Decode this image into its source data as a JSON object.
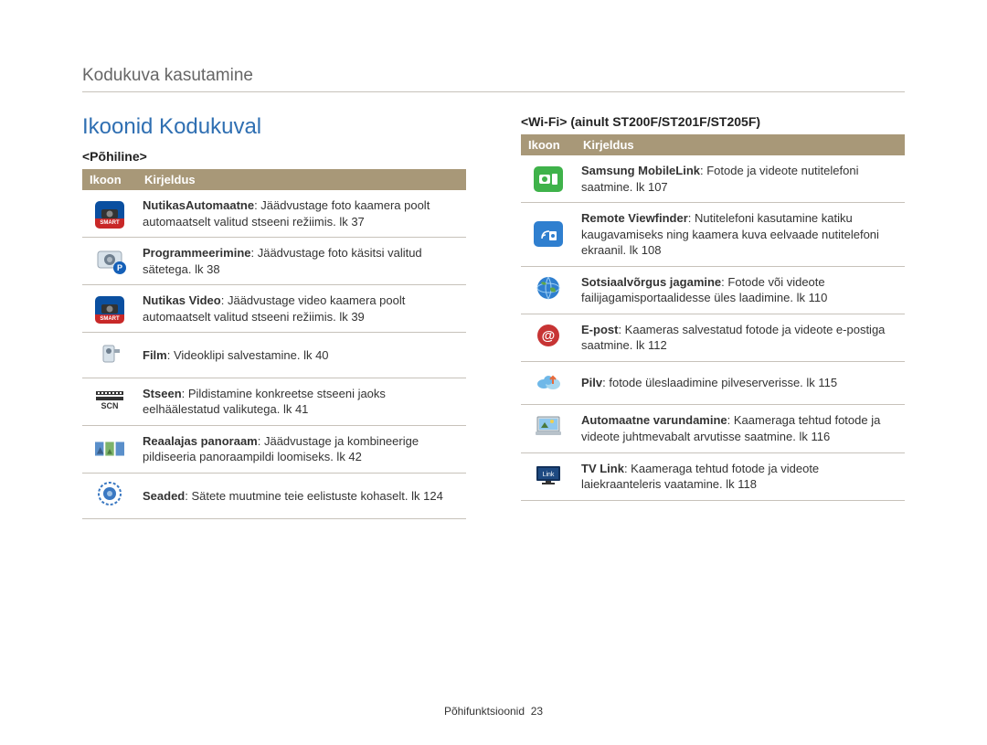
{
  "header": {
    "breadcrumb": "Kodukuva kasutamine"
  },
  "heading": "Ikoonid Kodukuval",
  "left": {
    "subhead": "<Põhiline>",
    "th_icon": "Ikoon",
    "th_desc": "Kirjeldus",
    "rows": [
      {
        "icon_bg": "#c82828",
        "icon_band": "#0a4fa0",
        "icon_glyph": "SMART",
        "icon_type": "smartcam",
        "bold": "NutikasAutomaatne",
        "rest": ": Jäädvustage foto kaamera poolt automaatselt valitud stseeni režiimis. lk 37"
      },
      {
        "icon_bg": "#d8e2ea",
        "icon_glyph": "P",
        "icon_type": "camera-p",
        "bold": "Programmeerimine",
        "rest": ": Jäädvustage foto käsitsi valitud sätetega. lk 38"
      },
      {
        "icon_bg": "#c82828",
        "icon_band": "#0a4fa0",
        "icon_glyph": "SMART",
        "icon_type": "smart-video",
        "bold": "Nutikas Video",
        "rest": ": Jäädvustage video kaamera poolt automaatselt valitud stseeni režiimis. lk 39"
      },
      {
        "icon_bg": "#d8e2ea",
        "icon_glyph": "🎥",
        "icon_type": "film",
        "bold": "Film",
        "rest": ": Videoklipi salvestamine. lk 40"
      },
      {
        "icon_bg": "#ffffff",
        "icon_glyph": "SCN",
        "icon_type": "scene",
        "bold": "Stseen",
        "rest": ": Pildistamine konkreetse stseeni jaoks eelhäälestatud valikutega. lk 41"
      },
      {
        "icon_bg": "#6fae5a",
        "icon_glyph": "▣",
        "icon_type": "panorama",
        "bold": "Reaalajas panoraam",
        "rest": ": Jäädvustage ja kombineerige pildiseeria panoraampildi loomiseks. lk 42"
      },
      {
        "icon_bg": "#3a78c2",
        "icon_glyph": "⚙",
        "icon_type": "settings",
        "bold": "Seaded",
        "rest": ": Sätete muutmine teie eelistuste kohaselt. lk 124"
      }
    ]
  },
  "right": {
    "subhead": "<Wi-Fi> (ainult ST200F/ST201F/ST205F)",
    "th_icon": "Ikoon",
    "th_desc": "Kirjeldus",
    "rows": [
      {
        "icon_bg": "#3fb24a",
        "icon_glyph": "📱",
        "icon_type": "mobilelink",
        "bold": "Samsung MobileLink",
        "rest": ": Fotode ja videote nutitelefoni saatmine. lk 107"
      },
      {
        "icon_bg": "#2f7fcf",
        "icon_glyph": "📷",
        "icon_type": "remote-vf",
        "bold": "Remote Viewfinder",
        "rest": ": Nutitelefoni kasutamine katiku kaugavamiseks ning kaamera kuva eelvaade nutitelefoni ekraanil. lk 108"
      },
      {
        "icon_bg": "#ffffff",
        "icon_glyph": "🌐",
        "icon_type": "globe",
        "bold": "Sotsiaalvõrgus jagamine",
        "rest": ": Fotode või videote failijagamisportaalidesse üles laadimine. lk 110"
      },
      {
        "icon_bg": "#c73434",
        "icon_glyph": "@",
        "icon_type": "email",
        "bold": "E-post",
        "rest": ": Kaameras salvestatud fotode ja videote e-postiga saatmine. lk 112"
      },
      {
        "icon_bg": "#ffffff",
        "icon_glyph": "☁",
        "icon_type": "cloud",
        "bold": "Pilv",
        "rest": ": fotode üleslaadimine pilveserverisse. lk 115"
      },
      {
        "icon_bg": "#e8eef2",
        "icon_glyph": "🖼",
        "icon_type": "laptop",
        "bold": "Automaatne varundamine",
        "rest": ": Kaameraga tehtud fotode ja videote juhtmevabalt arvutisse saatmine. lk 116"
      },
      {
        "icon_bg": "#12305a",
        "icon_glyph": "TV",
        "icon_type": "tv",
        "bold": "TV Link",
        "rest": ": Kaameraga tehtud fotode ja videote laiekraanteleris vaatamine. lk 118"
      }
    ]
  },
  "footer": {
    "section": "Põhifunktsioonid",
    "page": "23"
  },
  "colors": {
    "heading": "#2f6fb2",
    "table_header_bg": "#a89878",
    "rule": "#c7c2ba"
  }
}
